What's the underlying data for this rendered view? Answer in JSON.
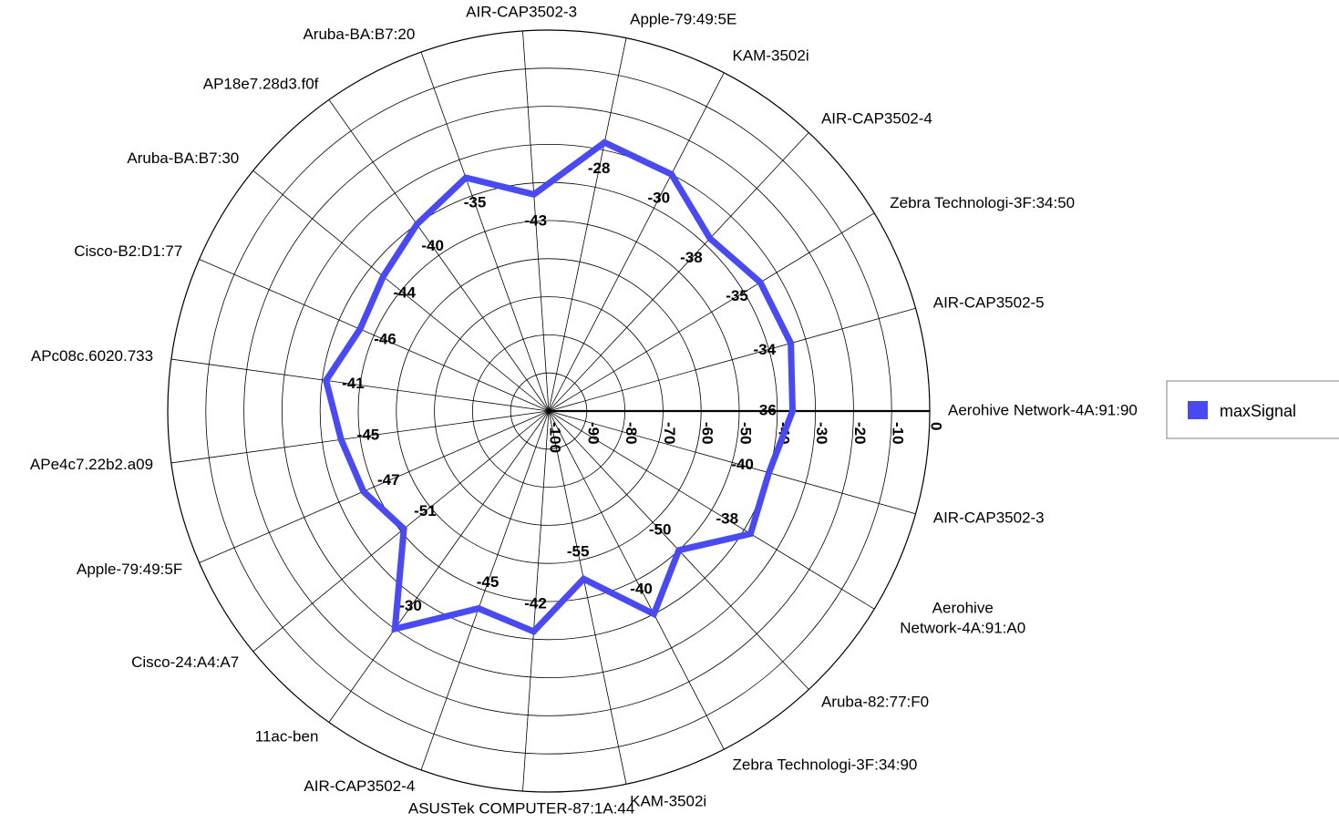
{
  "chart_data": {
    "type": "radar",
    "title": "",
    "axis": {
      "min": -100,
      "max": 0,
      "step": 10,
      "tick_labels": [
        "-100",
        "-90",
        "-80",
        "-70",
        "-60",
        "-50",
        "-40",
        "-30",
        "-20",
        "-10",
        "0"
      ]
    },
    "grid": true,
    "legend_position": "right",
    "categories": [
      "Aerohive Network-4A:91:90",
      "AIR-CAP3502-5",
      "Zebra Technologi-3F:34:50",
      "AIR-CAP3502-4",
      "KAM-3502i",
      "Apple-79:49:5E",
      "AIR-CAP3502-3",
      "Aruba-BA:B7:20",
      "AP18e7.28d3.f0f",
      "Aruba-BA:B7:30",
      "Cisco-B2:D1:77",
      "APc08c.6020.733",
      "APe4c7.22b2.a09",
      "Apple-79:49:5F",
      "Cisco-24:A4:A7",
      "11ac-ben",
      "AIR-CAP3502-4",
      "ASUSTek COMPUTER-87:1A:44",
      "KAM-3502i",
      "Zebra Technologi-3F:34:90",
      "Aruba-82:77:F0",
      "Aerohive Network-4A:91:A0",
      "AIR-CAP3502-3"
    ],
    "series": [
      {
        "name": "maxSignal",
        "color": "#4a4af2",
        "values": [
          -36,
          -34,
          -35,
          -38,
          -30,
          -28,
          -43,
          -35,
          -40,
          -44,
          -46,
          -41,
          -45,
          -47,
          -51,
          -30,
          -45,
          -42,
          -55,
          -40,
          -50,
          -38,
          -40
        ]
      }
    ]
  }
}
